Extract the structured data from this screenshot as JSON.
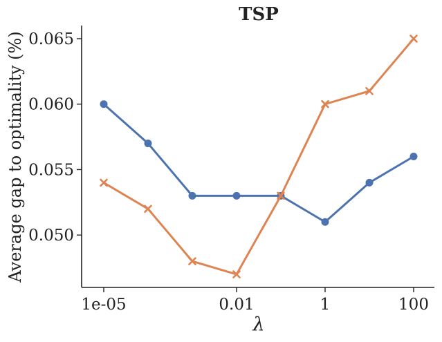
{
  "chart_data": {
    "type": "line",
    "title": "TSP",
    "xlabel": "λ",
    "ylabel": "Average gap to optimality (%)",
    "x": [
      1e-05,
      0.0001,
      0.001,
      0.01,
      0.1,
      1,
      10,
      100
    ],
    "x_ticks": [
      {
        "value": 1e-05,
        "label": "1e-05"
      },
      {
        "value": 0.01,
        "label": "0.01"
      },
      {
        "value": 1,
        "label": "1"
      },
      {
        "value": 100,
        "label": "100"
      }
    ],
    "x_scale": "log",
    "y_ticks": [
      {
        "value": 0.05,
        "label": "0.050"
      },
      {
        "value": 0.055,
        "label": "0.055"
      },
      {
        "value": 0.06,
        "label": "0.060"
      },
      {
        "value": 0.065,
        "label": "0.065"
      }
    ],
    "ylim": [
      0.046,
      0.066
    ],
    "grid": false,
    "series": [
      {
        "color": "#4c72b0",
        "marker": "circle",
        "values": [
          0.06,
          0.057,
          0.053,
          0.053,
          0.053,
          0.051,
          0.054,
          0.056
        ]
      },
      {
        "color": "#dd8452",
        "marker": "x",
        "values": [
          0.054,
          0.052,
          0.048,
          0.047,
          0.053,
          0.06,
          0.061,
          0.065
        ]
      }
    ]
  }
}
